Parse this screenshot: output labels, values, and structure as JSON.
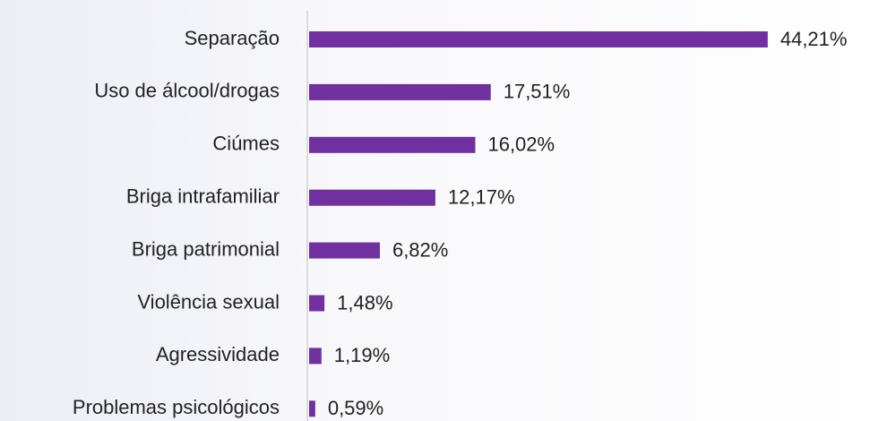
{
  "chart_data": {
    "type": "bar",
    "orientation": "horizontal",
    "categories": [
      "Separação",
      "Uso de álcool/drogas",
      "Ciúmes",
      "Briga intrafamiliar",
      "Briga patrimonial",
      "Violência sexual",
      "Agressividade",
      "Problemas psicológicos"
    ],
    "values": [
      44.21,
      17.51,
      16.02,
      12.17,
      6.82,
      1.48,
      1.19,
      0.59
    ],
    "value_labels": [
      "44,21%",
      "17,51%",
      "16,02%",
      "12,17%",
      "6,82%",
      "1,48%",
      "1,19%",
      "0,59%"
    ],
    "color": "#7030a0",
    "xlim": [
      0,
      45
    ]
  }
}
